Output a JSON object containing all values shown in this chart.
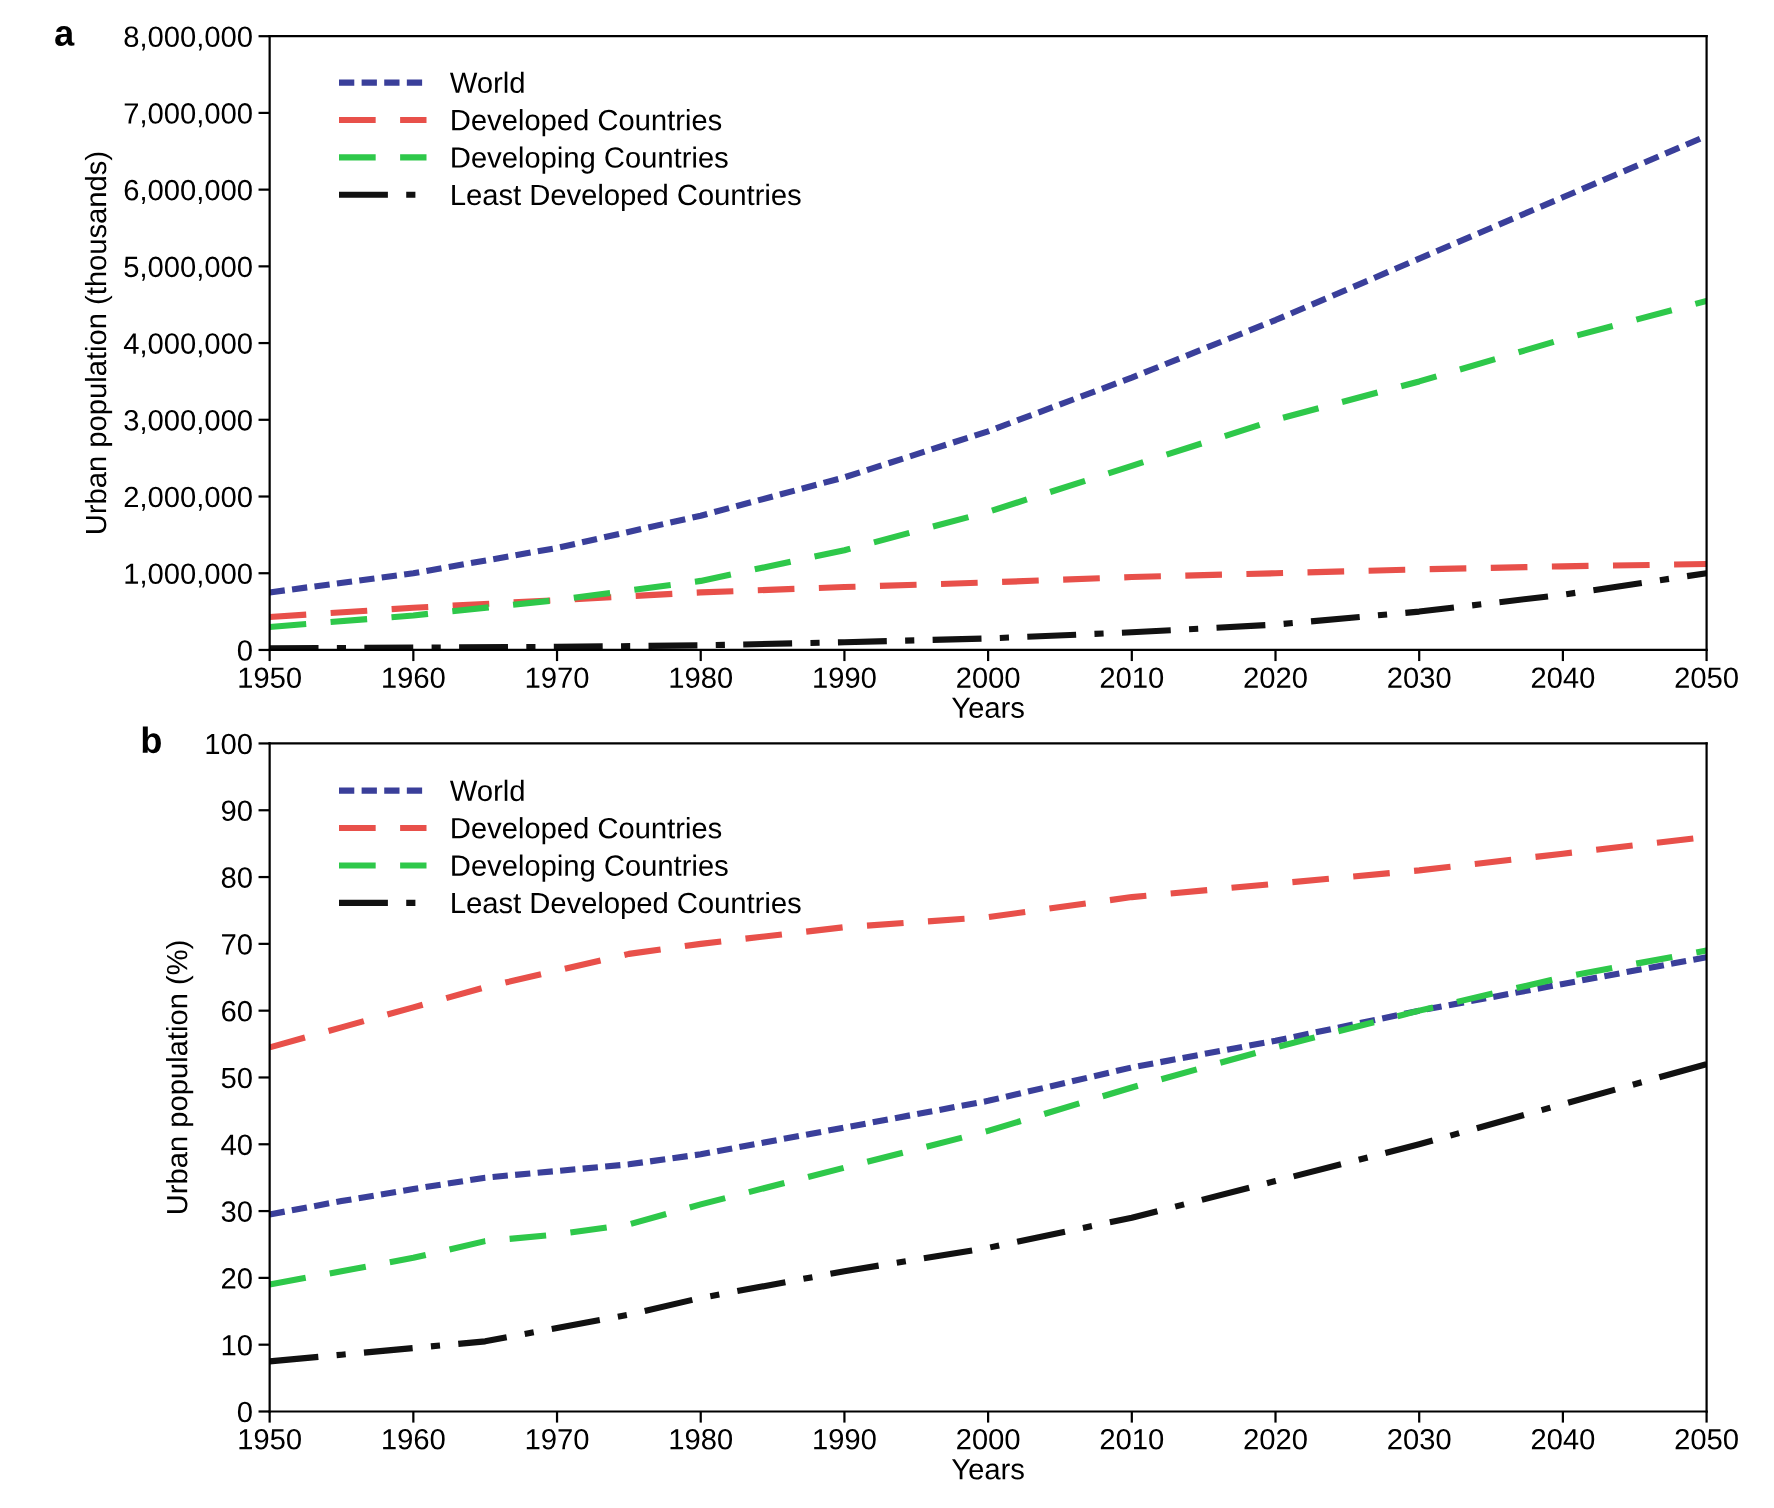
{
  "chart_data": [
    {
      "type": "line",
      "title": "a",
      "xlabel": "Years",
      "ylabel": "Urban population (thousands)",
      "x": [
        1950,
        1960,
        1970,
        1980,
        1990,
        2000,
        2010,
        2020,
        2030,
        2040,
        2050
      ],
      "series": [
        {
          "name": "World",
          "color": "#3a3f9a",
          "line_style": "dotted",
          "values": [
            750000,
            1000000,
            1330000,
            1750000,
            2250000,
            2850000,
            3550000,
            4300000,
            5100000,
            5900000,
            6700000
          ]
        },
        {
          "name": "Developed Countries",
          "color": "#e8504a",
          "line_style": "dashed",
          "values": [
            430000,
            550000,
            650000,
            750000,
            820000,
            880000,
            950000,
            1000000,
            1050000,
            1090000,
            1120000
          ]
        },
        {
          "name": "Developing Countries",
          "color": "#2ec84a",
          "line_style": "dashed",
          "values": [
            300000,
            450000,
            650000,
            900000,
            1300000,
            1800000,
            2400000,
            3000000,
            3500000,
            4050000,
            4550000
          ]
        },
        {
          "name": "Least Developed Countries",
          "color": "#111111",
          "line_style": "dashdot",
          "values": [
            20000,
            30000,
            40000,
            60000,
            100000,
            150000,
            230000,
            330000,
            500000,
            720000,
            1000000
          ]
        }
      ],
      "xlim": [
        1950,
        2050
      ],
      "xticks": [
        1950,
        1960,
        1970,
        1980,
        1990,
        2000,
        2010,
        2020,
        2030,
        2040,
        2050
      ],
      "ylim": [
        0,
        8000000
      ],
      "yticks": [
        0,
        {
          "value": 1000000,
          "label": "1,000,000"
        },
        {
          "value": 2000000,
          "label": "2,000,000"
        },
        {
          "value": 3000000,
          "label": "3,000,000"
        },
        {
          "value": 4000000,
          "label": "4,000,000"
        },
        {
          "value": 5000000,
          "label": "5,000,000"
        },
        {
          "value": 6000000,
          "label": "6,000,000"
        },
        {
          "value": 7000000,
          "label": "7,000,000"
        },
        {
          "value": 8000000,
          "label": "8,000,000"
        }
      ],
      "grid": false,
      "legend": "top left"
    },
    {
      "type": "line",
      "title": "b",
      "xlabel": "Years",
      "ylabel": "Urban population (%)",
      "x": [
        1950,
        1955,
        1960,
        1965,
        1970,
        1975,
        1980,
        1990,
        2000,
        2010,
        2020,
        2030,
        2040,
        2050
      ],
      "series": [
        {
          "name": "World",
          "color": "#3a3f9a",
          "line_style": "dotted",
          "values": [
            29.5,
            31.5,
            33.3,
            35,
            36,
            37,
            38.5,
            42.5,
            46.5,
            51.5,
            55.5,
            60,
            64,
            68
          ]
        },
        {
          "name": "Developed Countries",
          "color": "#e8504a",
          "line_style": "dashed",
          "values": [
            54.5,
            57.5,
            60.5,
            63.5,
            66,
            68.5,
            70,
            72.5,
            74,
            77,
            79,
            81,
            83.5,
            86
          ]
        },
        {
          "name": "Developing Countries",
          "color": "#2ec84a",
          "line_style": "dashed",
          "values": [
            19,
            21,
            23,
            25.5,
            26.5,
            28,
            31,
            36.5,
            42,
            48.5,
            54.5,
            60,
            65,
            69
          ]
        },
        {
          "name": "Least Developed Countries",
          "color": "#111111",
          "line_style": "dashdot",
          "values": [
            7.5,
            8.5,
            9.5,
            10.5,
            12.5,
            14.5,
            17,
            21,
            24.5,
            29,
            34.5,
            40,
            46,
            52
          ]
        }
      ],
      "xlim": [
        1950,
        2050
      ],
      "xticks": [
        1950,
        1960,
        1970,
        1980,
        1990,
        2000,
        2010,
        2020,
        2030,
        2040,
        2050
      ],
      "ylim": [
        0,
        100
      ],
      "yticks": [
        0,
        10,
        20,
        30,
        40,
        50,
        60,
        70,
        80,
        90,
        100
      ],
      "grid": false,
      "legend": "top left"
    }
  ]
}
